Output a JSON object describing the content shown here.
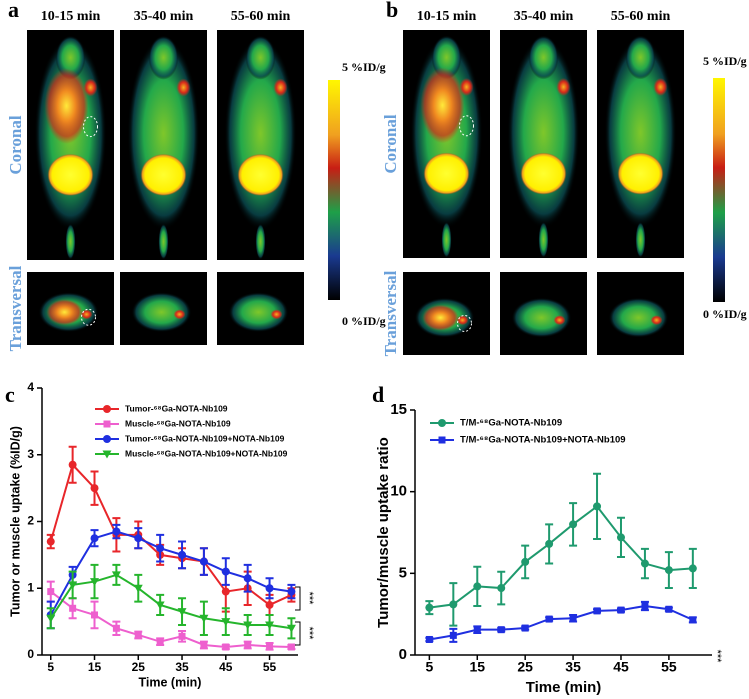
{
  "panels": [
    {
      "letter": "a",
      "times": [
        "10-15 min",
        "35-40 min",
        "55-60 min"
      ],
      "rows": [
        "Coronal",
        "Transversal"
      ],
      "scale_max": "5 %ID/g",
      "scale_min": "0 %ID/g"
    },
    {
      "letter": "b",
      "times": [
        "10-15 min",
        "35-40 min",
        "55-60 min"
      ],
      "rows": [
        "Coronal",
        "Transversal"
      ],
      "scale_max": "5 %ID/g",
      "scale_min": "0 %ID/g"
    }
  ],
  "chart_data": [
    {
      "type": "line",
      "panel_label": "c",
      "xlabel": "Time (min)",
      "ylabel": "Tumor or muscle uptake (%ID/g)",
      "x": [
        5,
        10,
        15,
        20,
        25,
        30,
        35,
        40,
        45,
        50,
        55,
        60
      ],
      "xlim": [
        3,
        61.5
      ],
      "xticks": [
        5,
        15,
        25,
        35,
        45,
        55
      ],
      "ylim": [
        0,
        4
      ],
      "yticks": [
        0,
        1,
        2,
        3,
        4
      ],
      "legend": "top",
      "series": [
        {
          "name": "Tumor-⁶⁸Ga-NOTA-Nb109",
          "color": "#e8262a",
          "marker": "circle",
          "values": [
            1.7,
            2.85,
            2.5,
            1.8,
            1.8,
            1.5,
            1.45,
            1.4,
            0.95,
            1.0,
            0.75,
            0.9
          ],
          "errors": [
            0.1,
            0.27,
            0.25,
            0.25,
            0.2,
            0.15,
            0.15,
            0.2,
            0.3,
            0.25,
            0.15,
            0.1
          ]
        },
        {
          "name": "Muscle-⁶⁸Ga-NOTA-Nb109",
          "color": "#ee5fce",
          "marker": "square",
          "values": [
            0.95,
            0.7,
            0.6,
            0.4,
            0.3,
            0.2,
            0.28,
            0.15,
            0.12,
            0.15,
            0.13,
            0.12
          ],
          "errors": [
            0.15,
            0.15,
            0.2,
            0.1,
            0.05,
            0.05,
            0.08,
            0.05,
            0.03,
            0.05,
            0.05,
            0.03
          ]
        },
        {
          "name": "Tumor-⁶⁸Ga-NOTA-Nb109+NOTA-Nb109",
          "color": "#1f2fe0",
          "marker": "circle",
          "values": [
            0.6,
            1.2,
            1.75,
            1.85,
            1.75,
            1.6,
            1.5,
            1.4,
            1.25,
            1.15,
            1.0,
            0.95
          ],
          "errors": [
            0.2,
            0.12,
            0.12,
            0.1,
            0.15,
            0.2,
            0.2,
            0.2,
            0.2,
            0.2,
            0.15,
            0.1
          ]
        },
        {
          "name": "Muscle-⁶⁸Ga-NOTA-Nb109+NOTA-Nb109",
          "color": "#25b52c",
          "marker": "triangle",
          "values": [
            0.55,
            1.05,
            1.1,
            1.2,
            1.0,
            0.75,
            0.65,
            0.55,
            0.5,
            0.45,
            0.45,
            0.4
          ],
          "errors": [
            0.15,
            0.2,
            0.25,
            0.15,
            0.2,
            0.15,
            0.2,
            0.25,
            0.2,
            0.15,
            0.15,
            0.15
          ]
        }
      ],
      "annotations": [
        "***",
        "***"
      ]
    },
    {
      "type": "line",
      "panel_label": "d",
      "xlabel": "Time (min)",
      "ylabel": "Tumor/muscle uptake ratio",
      "x": [
        5,
        10,
        15,
        20,
        25,
        30,
        35,
        40,
        45,
        50,
        55,
        60
      ],
      "xlim": [
        2,
        64
      ],
      "xticks": [
        5,
        15,
        25,
        35,
        45,
        55
      ],
      "ylim": [
        0,
        15
      ],
      "yticks": [
        0,
        5,
        10,
        15
      ],
      "legend": "top",
      "series": [
        {
          "name": "T/M-⁶⁸Ga-NOTA-Nb109",
          "color": "#1f9a6e",
          "marker": "circle",
          "values": [
            2.9,
            3.1,
            4.2,
            4.1,
            5.7,
            6.8,
            8.0,
            9.1,
            7.2,
            5.6,
            5.2,
            5.3
          ],
          "errors": [
            0.4,
            1.3,
            1.2,
            1.0,
            1.0,
            1.2,
            1.3,
            2.0,
            1.2,
            0.9,
            1.1,
            1.2
          ]
        },
        {
          "name": "T/M-⁶⁸Ga-NOTA-Nb109+NOTA-Nb109",
          "color": "#1f2fe0",
          "marker": "square",
          "values": [
            0.95,
            1.2,
            1.55,
            1.55,
            1.65,
            2.2,
            2.25,
            2.7,
            2.75,
            3.0,
            2.8,
            2.15
          ],
          "errors": [
            0.1,
            0.4,
            0.2,
            0.1,
            0.1,
            0.1,
            0.2,
            0.1,
            0.1,
            0.25,
            0.1,
            0.15
          ]
        }
      ],
      "annotations": [
        "***"
      ]
    }
  ]
}
